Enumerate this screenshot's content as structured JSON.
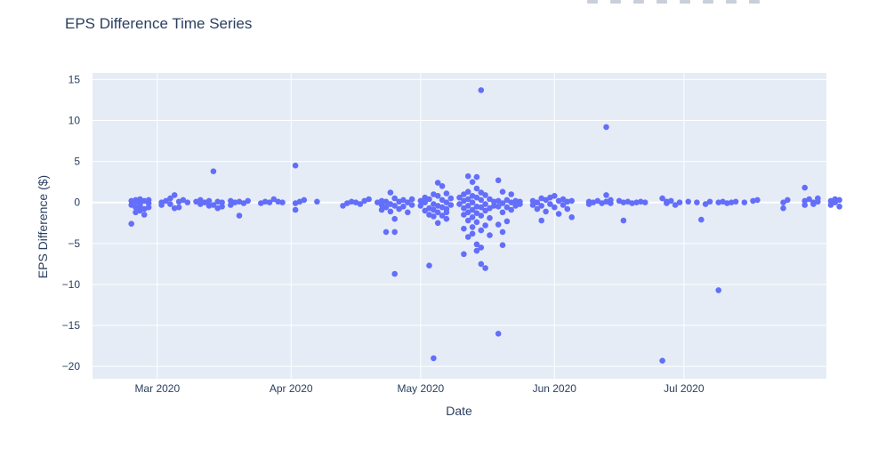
{
  "chart_data": {
    "type": "scatter",
    "title": "EPS Difference Time Series",
    "xlabel": "Date",
    "ylabel": "EPS Difference ($)",
    "xlim": [
      "2020-02-15",
      "2020-08-03"
    ],
    "ylim": [
      -21.5,
      15.8
    ],
    "x_ticks": [
      {
        "date": "2020-03-01",
        "label": "Mar 2020"
      },
      {
        "date": "2020-04-01",
        "label": "Apr 2020"
      },
      {
        "date": "2020-05-01",
        "label": "May 2020"
      },
      {
        "date": "2020-06-01",
        "label": "Jun 2020"
      },
      {
        "date": "2020-07-01",
        "label": "Jul 2020"
      }
    ],
    "y_ticks": [
      {
        "value": 15,
        "label": "15"
      },
      {
        "value": 10,
        "label": "10"
      },
      {
        "value": 5,
        "label": "5"
      },
      {
        "value": 0,
        "label": "0"
      },
      {
        "value": -5,
        "label": "−5"
      },
      {
        "value": -10,
        "label": "−10"
      },
      {
        "value": -15,
        "label": "−15"
      },
      {
        "value": -20,
        "label": "−20"
      }
    ],
    "grid": true,
    "marker_color": "#636efa",
    "plot_bg": "#e5ecf6",
    "grid_color": "#ffffff",
    "points": [
      {
        "x": "2020-02-24",
        "y": -2.6
      },
      {
        "x": "2020-02-24",
        "y": 0.2
      },
      {
        "x": "2020-02-24",
        "y": -0.3
      },
      {
        "x": "2020-02-25",
        "y": 0.1
      },
      {
        "x": "2020-02-25",
        "y": -0.6
      },
      {
        "x": "2020-02-25",
        "y": -1.2
      },
      {
        "x": "2020-02-25",
        "y": 0.3
      },
      {
        "x": "2020-02-26",
        "y": -0.2
      },
      {
        "x": "2020-02-26",
        "y": -1.0
      },
      {
        "x": "2020-02-26",
        "y": 0.4
      },
      {
        "x": "2020-02-26",
        "y": -0.5
      },
      {
        "x": "2020-02-27",
        "y": -1.5
      },
      {
        "x": "2020-02-27",
        "y": 0.2
      },
      {
        "x": "2020-02-27",
        "y": -0.8
      },
      {
        "x": "2020-02-28",
        "y": 0.3
      },
      {
        "x": "2020-02-28",
        "y": -0.1
      },
      {
        "x": "2020-02-28",
        "y": -0.6
      },
      {
        "x": "2020-03-02",
        "y": 0.0
      },
      {
        "x": "2020-03-02",
        "y": -0.3
      },
      {
        "x": "2020-03-03",
        "y": 0.2
      },
      {
        "x": "2020-03-04",
        "y": 0.5
      },
      {
        "x": "2020-03-04",
        "y": -0.2
      },
      {
        "x": "2020-03-05",
        "y": 0.9
      },
      {
        "x": "2020-03-05",
        "y": -0.7
      },
      {
        "x": "2020-03-06",
        "y": 0.1
      },
      {
        "x": "2020-03-06",
        "y": -0.6
      },
      {
        "x": "2020-03-07",
        "y": 0.3
      },
      {
        "x": "2020-03-08",
        "y": 0.0
      },
      {
        "x": "2020-03-10",
        "y": 0.1
      },
      {
        "x": "2020-03-11",
        "y": -0.2
      },
      {
        "x": "2020-03-11",
        "y": 0.3
      },
      {
        "x": "2020-03-12",
        "y": 0.0
      },
      {
        "x": "2020-03-13",
        "y": -0.4
      },
      {
        "x": "2020-03-13",
        "y": 0.2
      },
      {
        "x": "2020-03-14",
        "y": 3.8
      },
      {
        "x": "2020-03-14",
        "y": -0.3
      },
      {
        "x": "2020-03-15",
        "y": 0.1
      },
      {
        "x": "2020-03-15",
        "y": -0.7
      },
      {
        "x": "2020-03-16",
        "y": -0.5
      },
      {
        "x": "2020-03-16",
        "y": 0.0
      },
      {
        "x": "2020-03-18",
        "y": 0.2
      },
      {
        "x": "2020-03-18",
        "y": -0.3
      },
      {
        "x": "2020-03-19",
        "y": 0.0
      },
      {
        "x": "2020-03-20",
        "y": -1.6
      },
      {
        "x": "2020-03-20",
        "y": 0.1
      },
      {
        "x": "2020-03-21",
        "y": -0.1
      },
      {
        "x": "2020-03-22",
        "y": 0.2
      },
      {
        "x": "2020-03-25",
        "y": -0.1
      },
      {
        "x": "2020-03-26",
        "y": 0.1
      },
      {
        "x": "2020-03-27",
        "y": 0.0
      },
      {
        "x": "2020-03-28",
        "y": 0.4
      },
      {
        "x": "2020-03-29",
        "y": 0.1
      },
      {
        "x": "2020-03-30",
        "y": 0.0
      },
      {
        "x": "2020-04-02",
        "y": 4.5
      },
      {
        "x": "2020-04-02",
        "y": -0.1
      },
      {
        "x": "2020-04-02",
        "y": -0.9
      },
      {
        "x": "2020-04-03",
        "y": 0.1
      },
      {
        "x": "2020-04-04",
        "y": 0.3
      },
      {
        "x": "2020-04-07",
        "y": 0.1
      },
      {
        "x": "2020-04-13",
        "y": -0.4
      },
      {
        "x": "2020-04-14",
        "y": -0.1
      },
      {
        "x": "2020-04-15",
        "y": 0.1
      },
      {
        "x": "2020-04-16",
        "y": 0.0
      },
      {
        "x": "2020-04-17",
        "y": -0.2
      },
      {
        "x": "2020-04-18",
        "y": 0.2
      },
      {
        "x": "2020-04-19",
        "y": 0.4
      },
      {
        "x": "2020-04-21",
        "y": 0.0
      },
      {
        "x": "2020-04-22",
        "y": 0.2
      },
      {
        "x": "2020-04-22",
        "y": -0.3
      },
      {
        "x": "2020-04-22",
        "y": -0.9
      },
      {
        "x": "2020-04-23",
        "y": 0.1
      },
      {
        "x": "2020-04-23",
        "y": -0.6
      },
      {
        "x": "2020-04-23",
        "y": -3.6
      },
      {
        "x": "2020-04-24",
        "y": 1.2
      },
      {
        "x": "2020-04-24",
        "y": -0.2
      },
      {
        "x": "2020-04-24",
        "y": -1.1
      },
      {
        "x": "2020-04-25",
        "y": 0.5
      },
      {
        "x": "2020-04-25",
        "y": -8.7
      },
      {
        "x": "2020-04-25",
        "y": -3.6
      },
      {
        "x": "2020-04-25",
        "y": -2.0
      },
      {
        "x": "2020-04-25",
        "y": -0.4
      },
      {
        "x": "2020-04-26",
        "y": 0.1
      },
      {
        "x": "2020-04-26",
        "y": -0.8
      },
      {
        "x": "2020-04-27",
        "y": 0.3
      },
      {
        "x": "2020-04-27",
        "y": -0.5
      },
      {
        "x": "2020-04-28",
        "y": 0.0
      },
      {
        "x": "2020-04-28",
        "y": -1.2
      },
      {
        "x": "2020-04-29",
        "y": 0.4
      },
      {
        "x": "2020-04-29",
        "y": -0.3
      },
      {
        "x": "2020-05-01",
        "y": 0.2
      },
      {
        "x": "2020-05-01",
        "y": -0.4
      },
      {
        "x": "2020-05-02",
        "y": 0.6
      },
      {
        "x": "2020-05-02",
        "y": -1.0
      },
      {
        "x": "2020-05-02",
        "y": 0.0
      },
      {
        "x": "2020-05-03",
        "y": -7.7
      },
      {
        "x": "2020-05-03",
        "y": 0.4
      },
      {
        "x": "2020-05-03",
        "y": -0.7
      },
      {
        "x": "2020-05-03",
        "y": -1.5
      },
      {
        "x": "2020-05-04",
        "y": 1.0
      },
      {
        "x": "2020-05-04",
        "y": -0.2
      },
      {
        "x": "2020-05-04",
        "y": -0.9
      },
      {
        "x": "2020-05-04",
        "y": -1.7
      },
      {
        "x": "2020-05-04",
        "y": -19.0
      },
      {
        "x": "2020-05-05",
        "y": 2.4
      },
      {
        "x": "2020-05-05",
        "y": 0.8
      },
      {
        "x": "2020-05-05",
        "y": -0.4
      },
      {
        "x": "2020-05-05",
        "y": -1.2
      },
      {
        "x": "2020-05-05",
        "y": -2.5
      },
      {
        "x": "2020-05-06",
        "y": 2.0
      },
      {
        "x": "2020-05-06",
        "y": 0.3
      },
      {
        "x": "2020-05-06",
        "y": -0.6
      },
      {
        "x": "2020-05-06",
        "y": -1.6
      },
      {
        "x": "2020-05-07",
        "y": 1.1
      },
      {
        "x": "2020-05-07",
        "y": 0.0
      },
      {
        "x": "2020-05-07",
        "y": -0.8
      },
      {
        "x": "2020-05-07",
        "y": -2.0
      },
      {
        "x": "2020-05-07",
        "y": -1.2
      },
      {
        "x": "2020-05-08",
        "y": 0.5
      },
      {
        "x": "2020-05-08",
        "y": -0.3
      },
      {
        "x": "2020-05-10",
        "y": 0.6
      },
      {
        "x": "2020-05-10",
        "y": -0.2
      },
      {
        "x": "2020-05-11",
        "y": 1.0
      },
      {
        "x": "2020-05-11",
        "y": 0.2
      },
      {
        "x": "2020-05-11",
        "y": -0.7
      },
      {
        "x": "2020-05-11",
        "y": -1.5
      },
      {
        "x": "2020-05-11",
        "y": -3.2
      },
      {
        "x": "2020-05-11",
        "y": -6.3
      },
      {
        "x": "2020-05-12",
        "y": 3.2
      },
      {
        "x": "2020-05-12",
        "y": 1.3
      },
      {
        "x": "2020-05-12",
        "y": 0.4
      },
      {
        "x": "2020-05-12",
        "y": -0.4
      },
      {
        "x": "2020-05-12",
        "y": -1.2
      },
      {
        "x": "2020-05-12",
        "y": -2.2
      },
      {
        "x": "2020-05-12",
        "y": -4.2
      },
      {
        "x": "2020-05-13",
        "y": 2.5
      },
      {
        "x": "2020-05-13",
        "y": 0.8
      },
      {
        "x": "2020-05-13",
        "y": 0.0
      },
      {
        "x": "2020-05-13",
        "y": -0.9
      },
      {
        "x": "2020-05-13",
        "y": -1.8
      },
      {
        "x": "2020-05-13",
        "y": -3.0
      },
      {
        "x": "2020-05-13",
        "y": -3.8
      },
      {
        "x": "2020-05-14",
        "y": 3.1
      },
      {
        "x": "2020-05-14",
        "y": 1.7
      },
      {
        "x": "2020-05-14",
        "y": 0.6
      },
      {
        "x": "2020-05-14",
        "y": -0.5
      },
      {
        "x": "2020-05-14",
        "y": -1.3
      },
      {
        "x": "2020-05-14",
        "y": -2.4
      },
      {
        "x": "2020-05-14",
        "y": -5.1
      },
      {
        "x": "2020-05-14",
        "y": -5.9
      },
      {
        "x": "2020-05-15",
        "y": 13.7
      },
      {
        "x": "2020-05-15",
        "y": 1.2
      },
      {
        "x": "2020-05-15",
        "y": 0.3
      },
      {
        "x": "2020-05-15",
        "y": -0.6
      },
      {
        "x": "2020-05-15",
        "y": -1.6
      },
      {
        "x": "2020-05-15",
        "y": -3.4
      },
      {
        "x": "2020-05-15",
        "y": -5.5
      },
      {
        "x": "2020-05-15",
        "y": -7.5
      },
      {
        "x": "2020-05-16",
        "y": 0.9
      },
      {
        "x": "2020-05-16",
        "y": -0.2
      },
      {
        "x": "2020-05-16",
        "y": -1.0
      },
      {
        "x": "2020-05-16",
        "y": -2.8
      },
      {
        "x": "2020-05-16",
        "y": -8.0
      },
      {
        "x": "2020-05-17",
        "y": 0.4
      },
      {
        "x": "2020-05-17",
        "y": -0.7
      },
      {
        "x": "2020-05-17",
        "y": -1.9
      },
      {
        "x": "2020-05-17",
        "y": -4.0
      },
      {
        "x": "2020-05-18",
        "y": 0.1
      },
      {
        "x": "2020-05-18",
        "y": -0.4
      },
      {
        "x": "2020-05-19",
        "y": 2.7
      },
      {
        "x": "2020-05-19",
        "y": 0.2
      },
      {
        "x": "2020-05-19",
        "y": -0.5
      },
      {
        "x": "2020-05-19",
        "y": -2.7
      },
      {
        "x": "2020-05-19",
        "y": -16.0
      },
      {
        "x": "2020-05-20",
        "y": 1.3
      },
      {
        "x": "2020-05-20",
        "y": -0.1
      },
      {
        "x": "2020-05-20",
        "y": -1.2
      },
      {
        "x": "2020-05-20",
        "y": -3.6
      },
      {
        "x": "2020-05-20",
        "y": -5.2
      },
      {
        "x": "2020-05-21",
        "y": 0.3
      },
      {
        "x": "2020-05-21",
        "y": -0.6
      },
      {
        "x": "2020-05-21",
        "y": -2.3
      },
      {
        "x": "2020-05-22",
        "y": 1.0
      },
      {
        "x": "2020-05-22",
        "y": 0.0
      },
      {
        "x": "2020-05-22",
        "y": -0.9
      },
      {
        "x": "2020-05-23",
        "y": 0.2
      },
      {
        "x": "2020-05-23",
        "y": -0.4
      },
      {
        "x": "2020-05-24",
        "y": 0.1
      },
      {
        "x": "2020-05-24",
        "y": -0.2
      },
      {
        "x": "2020-05-27",
        "y": 0.2
      },
      {
        "x": "2020-05-27",
        "y": -0.3
      },
      {
        "x": "2020-05-28",
        "y": 0.0
      },
      {
        "x": "2020-05-28",
        "y": -0.8
      },
      {
        "x": "2020-05-29",
        "y": 0.5
      },
      {
        "x": "2020-05-29",
        "y": -2.2
      },
      {
        "x": "2020-05-29",
        "y": -0.4
      },
      {
        "x": "2020-05-30",
        "y": 0.3
      },
      {
        "x": "2020-05-30",
        "y": -1.1
      },
      {
        "x": "2020-05-31",
        "y": 0.6
      },
      {
        "x": "2020-05-31",
        "y": -0.2
      },
      {
        "x": "2020-06-01",
        "y": 0.8
      },
      {
        "x": "2020-06-01",
        "y": -0.6
      },
      {
        "x": "2020-06-02",
        "y": 0.2
      },
      {
        "x": "2020-06-02",
        "y": -1.4
      },
      {
        "x": "2020-06-03",
        "y": 0.4
      },
      {
        "x": "2020-06-03",
        "y": -0.3
      },
      {
        "x": "2020-06-04",
        "y": -0.8
      },
      {
        "x": "2020-06-04",
        "y": 0.1
      },
      {
        "x": "2020-06-05",
        "y": -1.8
      },
      {
        "x": "2020-06-05",
        "y": 0.2
      },
      {
        "x": "2020-06-09",
        "y": 0.1
      },
      {
        "x": "2020-06-09",
        "y": -0.2
      },
      {
        "x": "2020-06-10",
        "y": 0.0
      },
      {
        "x": "2020-06-11",
        "y": 0.2
      },
      {
        "x": "2020-06-12",
        "y": -0.1
      },
      {
        "x": "2020-06-13",
        "y": 9.2
      },
      {
        "x": "2020-06-13",
        "y": 0.1
      },
      {
        "x": "2020-06-13",
        "y": 0.9
      },
      {
        "x": "2020-06-14",
        "y": -0.1
      },
      {
        "x": "2020-06-14",
        "y": 0.3
      },
      {
        "x": "2020-06-16",
        "y": 0.2
      },
      {
        "x": "2020-06-17",
        "y": -2.2
      },
      {
        "x": "2020-06-17",
        "y": 0.0
      },
      {
        "x": "2020-06-18",
        "y": 0.1
      },
      {
        "x": "2020-06-19",
        "y": -0.1
      },
      {
        "x": "2020-06-20",
        "y": 0.0
      },
      {
        "x": "2020-06-21",
        "y": 0.1
      },
      {
        "x": "2020-06-22",
        "y": 0.0
      },
      {
        "x": "2020-06-26",
        "y": 0.5
      },
      {
        "x": "2020-06-26",
        "y": -19.3
      },
      {
        "x": "2020-06-27",
        "y": 0.1
      },
      {
        "x": "2020-06-27",
        "y": -0.1
      },
      {
        "x": "2020-06-28",
        "y": 0.2
      },
      {
        "x": "2020-06-29",
        "y": -0.3
      },
      {
        "x": "2020-06-30",
        "y": 0.0
      },
      {
        "x": "2020-07-02",
        "y": 0.1
      },
      {
        "x": "2020-07-04",
        "y": 0.0
      },
      {
        "x": "2020-07-05",
        "y": -2.1
      },
      {
        "x": "2020-07-06",
        "y": -0.2
      },
      {
        "x": "2020-07-07",
        "y": 0.1
      },
      {
        "x": "2020-07-09",
        "y": -10.7
      },
      {
        "x": "2020-07-09",
        "y": 0.0
      },
      {
        "x": "2020-07-10",
        "y": 0.1
      },
      {
        "x": "2020-07-11",
        "y": -0.1
      },
      {
        "x": "2020-07-12",
        "y": 0.0
      },
      {
        "x": "2020-07-13",
        "y": 0.1
      },
      {
        "x": "2020-07-15",
        "y": 0.0
      },
      {
        "x": "2020-07-17",
        "y": 0.2
      },
      {
        "x": "2020-07-18",
        "y": 0.3
      },
      {
        "x": "2020-07-24",
        "y": 0.0
      },
      {
        "x": "2020-07-24",
        "y": -0.7
      },
      {
        "x": "2020-07-25",
        "y": 0.3
      },
      {
        "x": "2020-07-29",
        "y": 1.8
      },
      {
        "x": "2020-07-29",
        "y": 0.2
      },
      {
        "x": "2020-07-29",
        "y": -0.3
      },
      {
        "x": "2020-07-30",
        "y": 0.4
      },
      {
        "x": "2020-07-31",
        "y": 0.0
      },
      {
        "x": "2020-07-31",
        "y": -0.2
      },
      {
        "x": "2020-08-01",
        "y": 0.5
      },
      {
        "x": "2020-08-01",
        "y": 0.1
      },
      {
        "x": "2020-08-04",
        "y": 0.2
      },
      {
        "x": "2020-08-04",
        "y": -0.3
      },
      {
        "x": "2020-08-05",
        "y": 0.4
      },
      {
        "x": "2020-08-05",
        "y": 0.0
      },
      {
        "x": "2020-08-06",
        "y": 0.3
      },
      {
        "x": "2020-08-06",
        "y": -0.5
      }
    ]
  }
}
